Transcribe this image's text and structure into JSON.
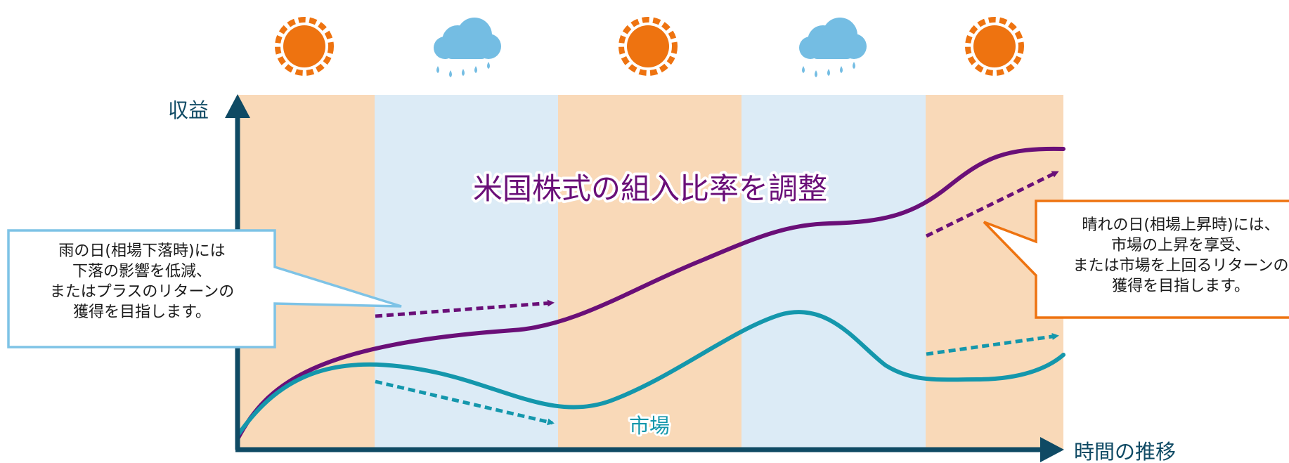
{
  "colors": {
    "sunny_band": "#f9d9b8",
    "rainy_band": "#dcebf6",
    "axis": "#0f4a64",
    "portfolio_line": "#6a0f78",
    "market_line": "#1497ac",
    "sun": "#ee7310",
    "cloud": "#74bde3",
    "rain_callout_border": "#7ec3e6",
    "sun_callout_border": "#ee7310"
  },
  "weather_icons": [
    "sun-icon",
    "rain-cloud-icon",
    "sun-icon",
    "rain-cloud-icon",
    "sun-icon"
  ],
  "axes": {
    "y_label": "収益",
    "x_label": "時間の推移"
  },
  "title": "米国株式の組入比率を調整",
  "market_label": "市場",
  "callouts": {
    "rain": [
      "雨の日(相場下落時)には",
      "下落の影響を低減、",
      "またはプラスのリターンの",
      "獲得を目指します。"
    ],
    "sun": [
      "晴れの日(相場上昇時)には、",
      "市場の上昇を享受、",
      "または市場を上回るリターンの",
      "獲得を目指します。"
    ]
  }
}
